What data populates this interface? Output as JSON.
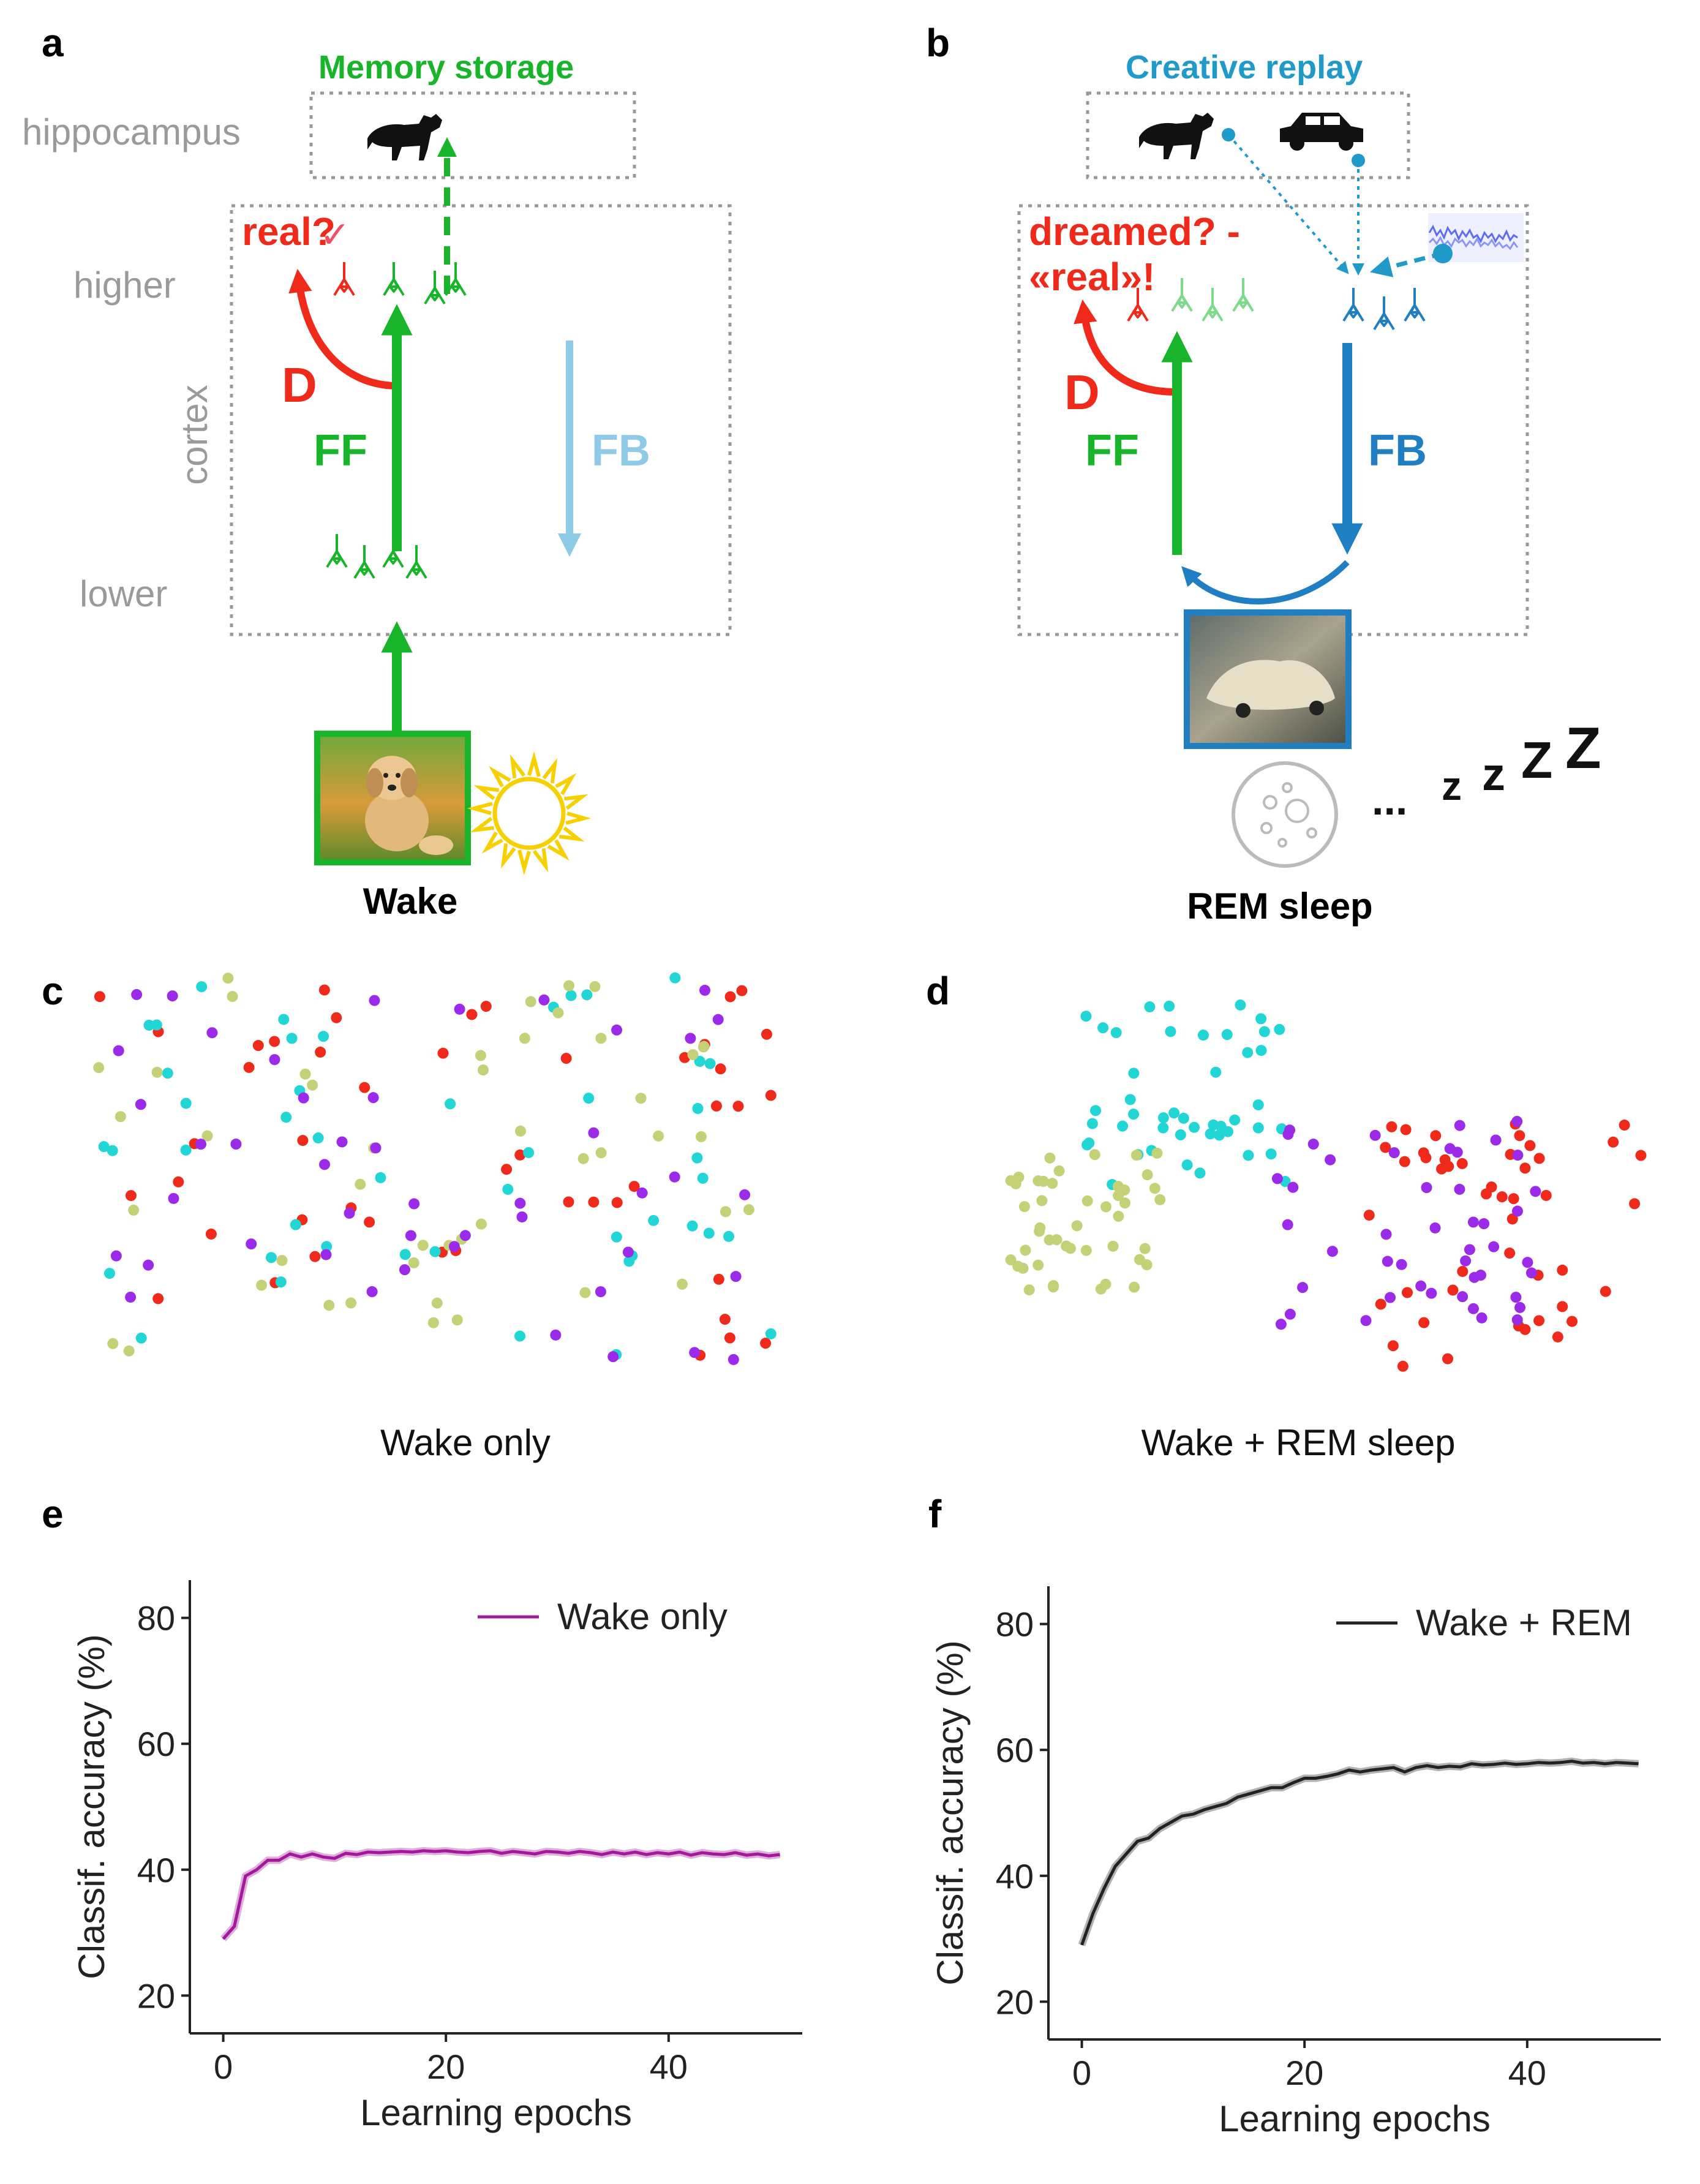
{
  "panels": {
    "a": "a",
    "b": "b",
    "c": "c",
    "d": "d",
    "e": "e",
    "f": "f"
  },
  "diagram_a": {
    "title": "Memory storage",
    "hippocampus": "hippocampus",
    "higher": "higher",
    "cortex": "cortex",
    "lower": "lower",
    "real_q": "real?",
    "check": "✓",
    "d": "D",
    "ff": "FF",
    "fb": "FB",
    "caption": "Wake"
  },
  "diagram_b": {
    "title": "Creative replay",
    "dreamed": "dreamed? -",
    "real": "«real»!",
    "d": "D",
    "ff": "FF",
    "fb": "FB",
    "zzz_dots": "...",
    "zzz": [
      "z",
      "z",
      "Z",
      "Z"
    ],
    "caption": "REM sleep"
  },
  "colors": {
    "green": "#18b42a",
    "lightgreen": "#7fd98b",
    "red": "#f02a1b",
    "blue": "#1f7fc2",
    "lightblue": "#8fcbe6",
    "gray": "#9a9a9a",
    "purple": "#a3199c",
    "cyan": "#22d6d6",
    "olive": "#c4d176",
    "violet": "#9b2be8"
  },
  "scatter_c": {
    "caption": "Wake only"
  },
  "scatter_d": {
    "caption": "Wake + REM sleep"
  },
  "chart_data": [
    {
      "type": "line",
      "panel": "e",
      "xlabel": "Learning epochs",
      "ylabel": "Classif. accuracy (%)",
      "xlim": [
        -3,
        52
      ],
      "ylim": [
        14,
        86
      ],
      "xticks": [
        0,
        20,
        40
      ],
      "yticks": [
        20,
        40,
        60,
        80
      ],
      "legend_position": "top-right",
      "series": [
        {
          "name": "Wake only",
          "color": "#a3199c",
          "x": [
            0,
            1,
            2,
            3,
            4,
            5,
            6,
            7,
            8,
            9,
            10,
            11,
            12,
            13,
            14,
            15,
            16,
            17,
            18,
            19,
            20,
            21,
            22,
            23,
            24,
            25,
            26,
            27,
            28,
            29,
            30,
            31,
            32,
            33,
            34,
            35,
            36,
            37,
            38,
            39,
            40,
            41,
            42,
            43,
            44,
            45,
            46,
            47,
            48,
            49,
            50
          ],
          "values": [
            29,
            31,
            39,
            40,
            41.5,
            41.5,
            42.5,
            42,
            42.5,
            42,
            41.8,
            42.6,
            42.4,
            42.8,
            42.7,
            42.8,
            42.9,
            42.8,
            43,
            42.9,
            43,
            42.8,
            42.7,
            42.9,
            43,
            42.6,
            42.9,
            42.7,
            42.5,
            42.9,
            42.8,
            42.6,
            42.9,
            42.7,
            42.4,
            42.8,
            42.5,
            42.8,
            42.4,
            42.7,
            42.5,
            42.8,
            42.3,
            42.7,
            42.5,
            42.4,
            42.7,
            42.3,
            42.5,
            42.2,
            42.4
          ]
        }
      ]
    },
    {
      "type": "line",
      "panel": "f",
      "xlabel": "Learning epochs",
      "ylabel": "Classif. accuracy (%)",
      "xlim": [
        -3,
        52
      ],
      "ylim": [
        14,
        86
      ],
      "xticks": [
        0,
        20,
        40
      ],
      "yticks": [
        20,
        40,
        60,
        80
      ],
      "legend_position": "top-right",
      "series": [
        {
          "name": "Wake + REM",
          "color": "#222222",
          "x": [
            0,
            1,
            2,
            3,
            4,
            5,
            6,
            7,
            8,
            9,
            10,
            11,
            12,
            13,
            14,
            15,
            16,
            17,
            18,
            19,
            20,
            21,
            22,
            23,
            24,
            25,
            26,
            27,
            28,
            29,
            30,
            31,
            32,
            33,
            34,
            35,
            36,
            37,
            38,
            39,
            40,
            41,
            42,
            43,
            44,
            45,
            46,
            47,
            48,
            49,
            50
          ],
          "values": [
            29,
            34,
            38,
            41.5,
            43.5,
            45.5,
            46,
            47.5,
            48.5,
            49.5,
            49.8,
            50.5,
            51,
            51.5,
            52.5,
            53,
            53.5,
            54,
            54,
            54.8,
            55.5,
            55.5,
            55.8,
            56.2,
            56.8,
            56.5,
            56.8,
            57,
            57.2,
            56.5,
            57.2,
            57.5,
            57.2,
            57.4,
            57.3,
            57.8,
            57.6,
            57.7,
            57.9,
            57.7,
            57.8,
            58,
            57.9,
            58,
            58.2,
            57.9,
            58,
            57.8,
            58,
            57.9,
            57.8
          ]
        }
      ]
    }
  ]
}
